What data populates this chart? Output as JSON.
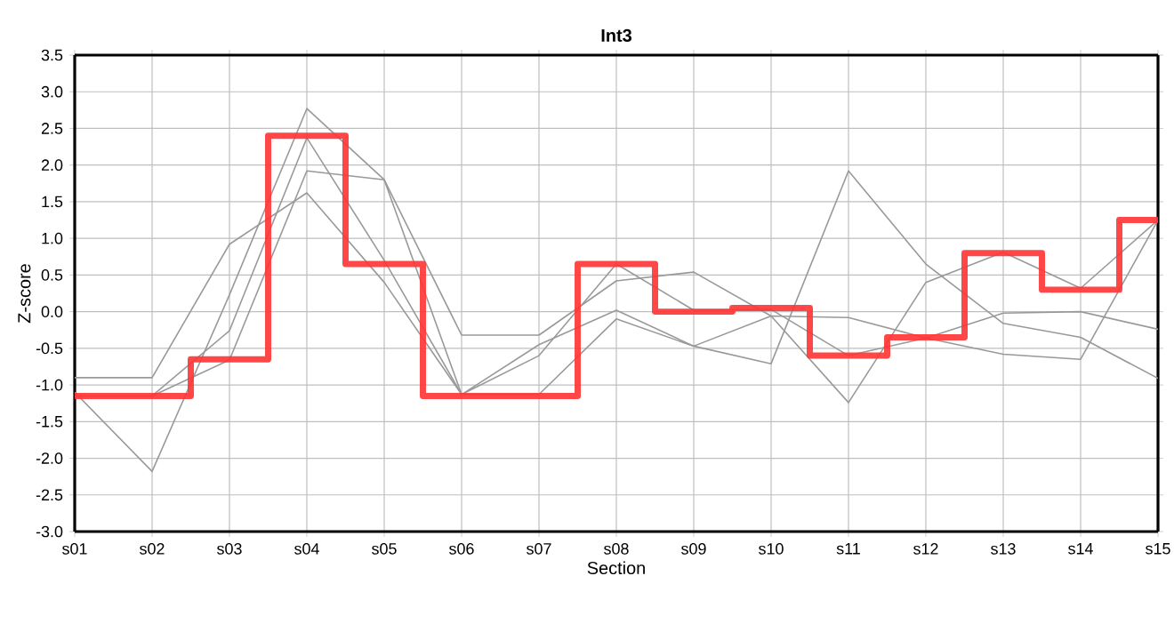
{
  "chart_data": {
    "type": "line",
    "title": "Int3",
    "xlabel": "Section",
    "ylabel": "Z-score",
    "categories": [
      "s01",
      "s02",
      "s03",
      "s04",
      "s05",
      "s06",
      "s07",
      "s08",
      "s09",
      "s10",
      "s11",
      "s12",
      "s13",
      "s14",
      "s15"
    ],
    "series": [
      {
        "color": "#999999",
        "values": [
          -0.9,
          -0.9,
          0.92,
          1.62,
          0.4,
          -1.13,
          -0.45,
          0.02,
          -0.47,
          -0.71,
          1.92,
          0.65,
          -0.16,
          -0.35,
          -0.91
        ]
      },
      {
        "color": "#999999",
        "values": [
          -1.1,
          -2.18,
          0.23,
          2.77,
          1.8,
          -0.32,
          -0.32,
          0.42,
          0.54,
          -0.06,
          -1.24,
          0.4,
          0.81,
          0.32,
          1.25
        ]
      },
      {
        "color": "#999999",
        "values": [
          -1.15,
          -1.15,
          -0.26,
          2.37,
          0.7,
          -1.13,
          -0.6,
          0.65,
          0.02,
          0.03,
          -0.6,
          -0.36,
          -0.58,
          -0.65,
          1.25
        ]
      },
      {
        "color": "#999999",
        "values": [
          -1.15,
          -1.15,
          -0.66,
          1.92,
          1.8,
          -1.13,
          -1.13,
          -0.1,
          -0.47,
          -0.06,
          -0.08,
          -0.36,
          -0.02,
          0.0,
          -0.24
        ]
      },
      {
        "type": "step",
        "color": "#ff3333",
        "values": [
          -1.15,
          -1.15,
          -0.65,
          2.4,
          0.65,
          -1.15,
          -1.15,
          0.65,
          0.0,
          0.05,
          -0.6,
          -0.35,
          0.8,
          0.3,
          1.25
        ]
      }
    ],
    "ylim": [
      -3.0,
      3.5
    ],
    "yticks": [
      {
        "value": -3.0,
        "label": "-3.0"
      },
      {
        "value": -2.5,
        "label": "-2.5"
      },
      {
        "value": -2.0,
        "label": "-2.0"
      },
      {
        "value": -1.5,
        "label": "-1.5"
      },
      {
        "value": -1.0,
        "label": "-1.0"
      },
      {
        "value": -0.5,
        "label": "-0.5"
      },
      {
        "value": 0.0,
        "label": "0.0"
      },
      {
        "value": 0.5,
        "label": "0.5"
      },
      {
        "value": 1.0,
        "label": "1.0"
      },
      {
        "value": 1.5,
        "label": "1.5"
      },
      {
        "value": 2.0,
        "label": "2.0"
      },
      {
        "value": 2.5,
        "label": "2.5"
      },
      {
        "value": 3.0,
        "label": "3.0"
      },
      {
        "value": 3.5,
        "label": "3.5"
      }
    ],
    "grid": true
  }
}
